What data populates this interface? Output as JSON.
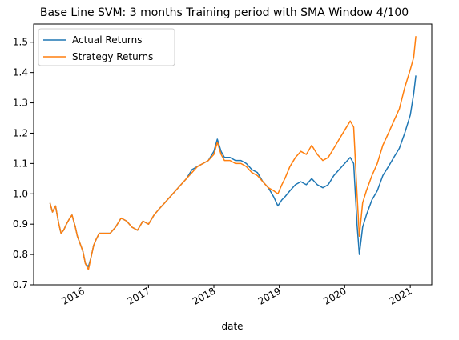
{
  "chart_data": {
    "type": "line",
    "title": "Base Line SVM: 3 months Training period with SMA Window 4/100",
    "xlabel": "date",
    "ylabel": "",
    "xlim": [
      "2015-04-01",
      "2021-05-01"
    ],
    "ylim": [
      0.7,
      1.56
    ],
    "yticks": [
      0.7,
      0.8,
      0.9,
      1.0,
      1.1,
      1.2,
      1.3,
      1.4,
      1.5
    ],
    "ytick_labels": [
      "0.7",
      "0.8",
      "0.9",
      "1.0",
      "1.1",
      "1.2",
      "1.3",
      "1.4",
      "1.5"
    ],
    "xticks": [
      "2016-01-01",
      "2017-01-01",
      "2018-01-01",
      "2019-01-01",
      "2020-01-01",
      "2021-01-01"
    ],
    "xtick_labels": [
      "2016",
      "2017",
      "2018",
      "2019",
      "2020",
      "2021"
    ],
    "grid": false,
    "legend_position": "top-left",
    "series": [
      {
        "name": "Actual Returns",
        "color": "#1f77b4",
        "points": [
          [
            "2015-07-01",
            0.97
          ],
          [
            "2015-07-15",
            0.94
          ],
          [
            "2015-08-01",
            0.96
          ],
          [
            "2015-08-20",
            0.9
          ],
          [
            "2015-09-01",
            0.87
          ],
          [
            "2015-09-15",
            0.88
          ],
          [
            "2015-10-01",
            0.9
          ],
          [
            "2015-10-20",
            0.92
          ],
          [
            "2015-11-01",
            0.93
          ],
          [
            "2015-11-20",
            0.89
          ],
          [
            "2015-12-01",
            0.86
          ],
          [
            "2015-12-20",
            0.83
          ],
          [
            "2016-01-01",
            0.81
          ],
          [
            "2016-01-15",
            0.77
          ],
          [
            "2016-02-01",
            0.76
          ],
          [
            "2016-02-15",
            0.79
          ],
          [
            "2016-03-01",
            0.83
          ],
          [
            "2016-03-15",
            0.85
          ],
          [
            "2016-04-01",
            0.87
          ],
          [
            "2016-05-01",
            0.87
          ],
          [
            "2016-06-01",
            0.87
          ],
          [
            "2016-07-01",
            0.89
          ],
          [
            "2016-08-01",
            0.92
          ],
          [
            "2016-09-01",
            0.91
          ],
          [
            "2016-10-01",
            0.89
          ],
          [
            "2016-11-01",
            0.88
          ],
          [
            "2016-12-01",
            0.91
          ],
          [
            "2017-01-01",
            0.9
          ],
          [
            "2017-02-01",
            0.93
          ],
          [
            "2017-03-01",
            0.95
          ],
          [
            "2017-04-01",
            0.97
          ],
          [
            "2017-05-01",
            0.99
          ],
          [
            "2017-06-01",
            1.01
          ],
          [
            "2017-07-01",
            1.03
          ],
          [
            "2017-08-01",
            1.05
          ],
          [
            "2017-09-01",
            1.08
          ],
          [
            "2017-10-01",
            1.09
          ],
          [
            "2017-11-01",
            1.1
          ],
          [
            "2017-12-01",
            1.11
          ],
          [
            "2018-01-01",
            1.14
          ],
          [
            "2018-01-20",
            1.18
          ],
          [
            "2018-02-10",
            1.14
          ],
          [
            "2018-03-01",
            1.12
          ],
          [
            "2018-04-01",
            1.12
          ],
          [
            "2018-05-01",
            1.11
          ],
          [
            "2018-06-01",
            1.11
          ],
          [
            "2018-07-01",
            1.1
          ],
          [
            "2018-08-01",
            1.08
          ],
          [
            "2018-09-01",
            1.07
          ],
          [
            "2018-10-01",
            1.04
          ],
          [
            "2018-11-01",
            1.02
          ],
          [
            "2018-12-01",
            0.99
          ],
          [
            "2018-12-24",
            0.96
          ],
          [
            "2019-01-15",
            0.98
          ],
          [
            "2019-02-01",
            0.99
          ],
          [
            "2019-03-01",
            1.01
          ],
          [
            "2019-04-01",
            1.03
          ],
          [
            "2019-05-01",
            1.04
          ],
          [
            "2019-06-01",
            1.03
          ],
          [
            "2019-07-01",
            1.05
          ],
          [
            "2019-08-01",
            1.03
          ],
          [
            "2019-09-01",
            1.02
          ],
          [
            "2019-10-01",
            1.03
          ],
          [
            "2019-11-01",
            1.06
          ],
          [
            "2019-12-01",
            1.08
          ],
          [
            "2020-01-01",
            1.1
          ],
          [
            "2020-02-01",
            1.12
          ],
          [
            "2020-02-20",
            1.1
          ],
          [
            "2020-03-10",
            0.9
          ],
          [
            "2020-03-23",
            0.8
          ],
          [
            "2020-04-10",
            0.89
          ],
          [
            "2020-05-01",
            0.93
          ],
          [
            "2020-06-01",
            0.98
          ],
          [
            "2020-07-01",
            1.01
          ],
          [
            "2020-08-01",
            1.06
          ],
          [
            "2020-09-01",
            1.09
          ],
          [
            "2020-10-01",
            1.12
          ],
          [
            "2020-11-01",
            1.15
          ],
          [
            "2020-12-01",
            1.2
          ],
          [
            "2021-01-01",
            1.26
          ],
          [
            "2021-01-20",
            1.33
          ],
          [
            "2021-02-01",
            1.39
          ]
        ]
      },
      {
        "name": "Strategy Returns",
        "color": "#ff7f0e",
        "points": [
          [
            "2015-07-01",
            0.97
          ],
          [
            "2015-07-15",
            0.94
          ],
          [
            "2015-08-01",
            0.96
          ],
          [
            "2015-08-20",
            0.9
          ],
          [
            "2015-09-01",
            0.87
          ],
          [
            "2015-09-15",
            0.88
          ],
          [
            "2015-10-01",
            0.9
          ],
          [
            "2015-10-20",
            0.92
          ],
          [
            "2015-11-01",
            0.93
          ],
          [
            "2015-11-20",
            0.89
          ],
          [
            "2015-12-01",
            0.86
          ],
          [
            "2015-12-20",
            0.83
          ],
          [
            "2016-01-01",
            0.81
          ],
          [
            "2016-01-15",
            0.77
          ],
          [
            "2016-02-01",
            0.75
          ],
          [
            "2016-02-15",
            0.79
          ],
          [
            "2016-03-01",
            0.83
          ],
          [
            "2016-03-15",
            0.85
          ],
          [
            "2016-04-01",
            0.87
          ],
          [
            "2016-05-01",
            0.87
          ],
          [
            "2016-06-01",
            0.87
          ],
          [
            "2016-07-01",
            0.89
          ],
          [
            "2016-08-01",
            0.92
          ],
          [
            "2016-09-01",
            0.91
          ],
          [
            "2016-10-01",
            0.89
          ],
          [
            "2016-11-01",
            0.88
          ],
          [
            "2016-12-01",
            0.91
          ],
          [
            "2017-01-01",
            0.9
          ],
          [
            "2017-02-01",
            0.93
          ],
          [
            "2017-03-01",
            0.95
          ],
          [
            "2017-04-01",
            0.97
          ],
          [
            "2017-05-01",
            0.99
          ],
          [
            "2017-06-01",
            1.01
          ],
          [
            "2017-07-01",
            1.03
          ],
          [
            "2017-08-01",
            1.05
          ],
          [
            "2017-09-01",
            1.07
          ],
          [
            "2017-10-01",
            1.09
          ],
          [
            "2017-11-01",
            1.1
          ],
          [
            "2017-12-01",
            1.11
          ],
          [
            "2018-01-01",
            1.13
          ],
          [
            "2018-01-20",
            1.17
          ],
          [
            "2018-02-10",
            1.13
          ],
          [
            "2018-03-01",
            1.11
          ],
          [
            "2018-04-01",
            1.11
          ],
          [
            "2018-05-01",
            1.1
          ],
          [
            "2018-06-01",
            1.1
          ],
          [
            "2018-07-01",
            1.09
          ],
          [
            "2018-08-01",
            1.07
          ],
          [
            "2018-09-01",
            1.06
          ],
          [
            "2018-10-01",
            1.04
          ],
          [
            "2018-11-01",
            1.02
          ],
          [
            "2018-12-01",
            1.01
          ],
          [
            "2018-12-24",
            1.0
          ],
          [
            "2019-01-15",
            1.03
          ],
          [
            "2019-02-01",
            1.05
          ],
          [
            "2019-03-01",
            1.09
          ],
          [
            "2019-04-01",
            1.12
          ],
          [
            "2019-05-01",
            1.14
          ],
          [
            "2019-06-01",
            1.13
          ],
          [
            "2019-07-01",
            1.16
          ],
          [
            "2019-08-01",
            1.13
          ],
          [
            "2019-09-01",
            1.11
          ],
          [
            "2019-10-01",
            1.12
          ],
          [
            "2019-11-01",
            1.15
          ],
          [
            "2019-12-01",
            1.18
          ],
          [
            "2020-01-01",
            1.21
          ],
          [
            "2020-02-01",
            1.24
          ],
          [
            "2020-02-20",
            1.22
          ],
          [
            "2020-03-10",
            1.0
          ],
          [
            "2020-03-23",
            0.86
          ],
          [
            "2020-04-10",
            0.97
          ],
          [
            "2020-05-01",
            1.01
          ],
          [
            "2020-06-01",
            1.06
          ],
          [
            "2020-07-01",
            1.1
          ],
          [
            "2020-08-01",
            1.16
          ],
          [
            "2020-09-01",
            1.2
          ],
          [
            "2020-10-01",
            1.24
          ],
          [
            "2020-11-01",
            1.28
          ],
          [
            "2020-12-01",
            1.35
          ],
          [
            "2021-01-01",
            1.41
          ],
          [
            "2021-01-20",
            1.45
          ],
          [
            "2021-02-01",
            1.52
          ]
        ]
      }
    ]
  }
}
